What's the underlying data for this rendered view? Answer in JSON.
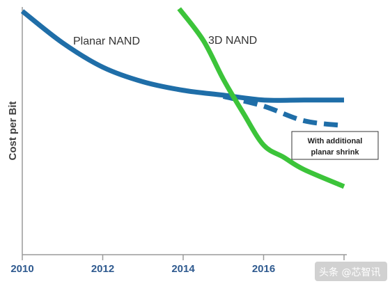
{
  "chart_data": {
    "type": "line",
    "title": "",
    "ylabel": "Cost per Bit",
    "xlabel": "",
    "x_ticks": [
      2010,
      2012,
      2014,
      2016
    ],
    "xlim": [
      2010,
      2018
    ],
    "ylim": [
      0,
      100
    ],
    "y_ticks_shown": false,
    "grid": false,
    "legend": "none",
    "series": [
      {
        "name": "Planar NAND",
        "color": "#1f6ea8",
        "style": "solid",
        "x": [
          2010,
          2011,
          2012,
          2013,
          2014,
          2015,
          2016,
          2017,
          2018
        ],
        "y": [
          100,
          87,
          77,
          71,
          67.5,
          65.5,
          63.5,
          63.5,
          63.5
        ]
      },
      {
        "name": "With additional planar shrink",
        "color": "#1f6ea8",
        "style": "dashed",
        "x": [
          2015,
          2016,
          2017,
          2018
        ],
        "y": [
          65,
          61,
          55,
          53
        ]
      },
      {
        "name": "3D NAND",
        "color": "#3cc43a",
        "style": "solid",
        "x": [
          2013.9,
          2014.5,
          2015,
          2015.5,
          2016,
          2016.5,
          2017,
          2018
        ],
        "y": [
          101,
          88,
          72,
          58,
          45,
          40,
          35,
          28
        ]
      }
    ],
    "annotations": [
      {
        "text": "Planar NAND",
        "series": "Planar NAND"
      },
      {
        "text": "3D NAND",
        "series": "3D NAND"
      },
      {
        "text_lines": [
          "With additional",
          "planar shrink"
        ],
        "series": "With additional planar shrink",
        "boxed": true
      }
    ]
  },
  "watermark": {
    "text": "头条 @芯智讯"
  }
}
